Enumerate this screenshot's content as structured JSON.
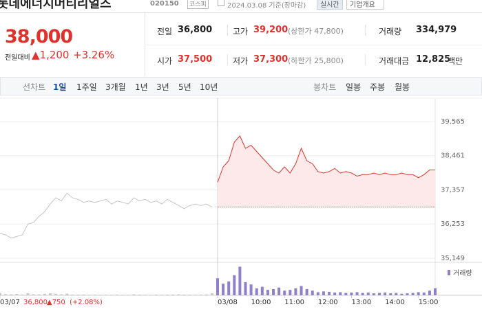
{
  "header": {
    "title": "롯데에너지머티리얼즈",
    "code": "020150",
    "market": "코스피",
    "date": "2024.03.08 기준(장마감)",
    "buttons": [
      "실시간",
      "기업개요"
    ]
  },
  "quote": {
    "price": "38,000",
    "change_label": "전일대비",
    "change": "▲1,200",
    "change_pct": "+3.26%"
  },
  "stats": [
    {
      "label": "전일",
      "value": "36,800"
    },
    {
      "label": "고가",
      "value": "39,200",
      "note": "(상한가 47,800)",
      "color": "#e0322c"
    },
    {
      "label": "거래량",
      "value": "334,979"
    },
    {
      "label": "시가",
      "value": "37,500",
      "color": "#e0322c"
    },
    {
      "label": "저가",
      "value": "37,300",
      "note": "(하한가 25,800)",
      "color": "#e0322c"
    },
    {
      "label": "거래대금",
      "value": "12,825",
      "unit": "백만"
    }
  ],
  "tabs": {
    "line_label": "선차트",
    "line_periods": [
      "1일",
      "1주일",
      "3개월",
      "1년",
      "3년",
      "5년",
      "10년"
    ],
    "candle_label": "봉차트",
    "candle_periods": [
      "일봉",
      "주봉",
      "월봉"
    ],
    "selected": 0
  },
  "chart_data": {
    "type": "line",
    "xlim": [
      0,
      78
    ],
    "xticks": [
      {
        "value": 0,
        "label": "03/07"
      },
      {
        "value": 39,
        "label": "03/08"
      },
      {
        "value": 45,
        "label": "10:00"
      },
      {
        "value": 51,
        "label": "11:00"
      },
      {
        "value": 57,
        "label": "12:00"
      },
      {
        "value": 63,
        "label": "13:00"
      },
      {
        "value": 69,
        "label": "14:00"
      },
      {
        "value": 75,
        "label": "15:00"
      }
    ],
    "ylim": [
      35060,
      40164
    ],
    "yticks": [
      {
        "value": 39565,
        "label": "39,565"
      },
      {
        "value": 38461,
        "label": "38,461"
      },
      {
        "value": 37357,
        "label": "37,357"
      },
      {
        "value": 36253,
        "label": "36,253"
      },
      {
        "value": 35149,
        "label": "35,149"
      }
    ],
    "grid": true,
    "reference_line": 36800,
    "series": [
      {
        "color": "#c4c4c4",
        "x": [
          0,
          1,
          2,
          3,
          4,
          5,
          6,
          7,
          8,
          9,
          10,
          11,
          12,
          13,
          14,
          15,
          16,
          17,
          18,
          19,
          20,
          21,
          22,
          23,
          24,
          25,
          26,
          27,
          28,
          29,
          30,
          31,
          32,
          33,
          34,
          35,
          36,
          37,
          38
        ],
        "values": [
          35950,
          35900,
          35800,
          35850,
          35900,
          36250,
          36300,
          36500,
          36650,
          36900,
          37100,
          37000,
          37250,
          37100,
          37050,
          36950,
          37000,
          36950,
          37000,
          37050,
          36900,
          37000,
          36950,
          36900,
          37100,
          37000,
          37050,
          36950,
          37000,
          36900,
          37050,
          36950,
          36850,
          36750,
          36850,
          36900,
          36850,
          36900,
          36800
        ]
      },
      {
        "color": "#e0322c",
        "fill": "#fde9e9",
        "x": [
          39,
          40,
          41,
          42,
          43,
          44,
          45,
          46,
          47,
          48,
          49,
          50,
          51,
          52,
          53,
          54,
          55,
          56,
          57,
          58,
          59,
          60,
          61,
          62,
          63,
          64,
          65,
          66,
          67,
          68,
          69,
          70,
          71,
          72,
          73,
          74,
          75,
          76,
          77,
          78
        ],
        "values": [
          37600,
          38100,
          38300,
          38900,
          39100,
          38700,
          38800,
          38600,
          38400,
          38200,
          38000,
          37900,
          38100,
          37900,
          38200,
          38700,
          38300,
          38200,
          37950,
          37900,
          37950,
          38050,
          37900,
          37950,
          37900,
          37800,
          37850,
          37850,
          37900,
          37850,
          37900,
          37850,
          37850,
          37900,
          37850,
          37850,
          37750,
          37850,
          38000,
          38000
        ]
      }
    ],
    "volume": {
      "name": "거래량",
      "ylim": [
        0,
        40000
      ],
      "series": [
        {
          "color": "#c8c8c8",
          "values": [
            3000,
            1500,
            1200,
            1800,
            900,
            2500,
            1400,
            1100,
            2000,
            2600,
            1900,
            1200,
            2200,
            900,
            800,
            1000,
            700,
            900,
            600,
            800,
            700,
            900,
            600,
            700,
            1200,
            800,
            700,
            600,
            900,
            700,
            800,
            1000,
            1200,
            900,
            800,
            700,
            900,
            1100,
            2500
          ]
        },
        {
          "color": "#8f80c9",
          "values": [
            22000,
            15000,
            18000,
            26000,
            37000,
            17000,
            14000,
            9000,
            11000,
            7000,
            8000,
            10000,
            6000,
            7000,
            9000,
            12000,
            8000,
            6000,
            4000,
            5000,
            4500,
            3500,
            4000,
            3000,
            3500,
            4000,
            3000,
            3500,
            2500,
            3000,
            3500,
            2500,
            3000,
            2000,
            2500,
            3000,
            4000,
            3500,
            6000,
            9000
          ]
        }
      ]
    },
    "footer": {
      "price": "36,800",
      "change": "▲750",
      "change_pct": "(+2.08%)"
    }
  }
}
